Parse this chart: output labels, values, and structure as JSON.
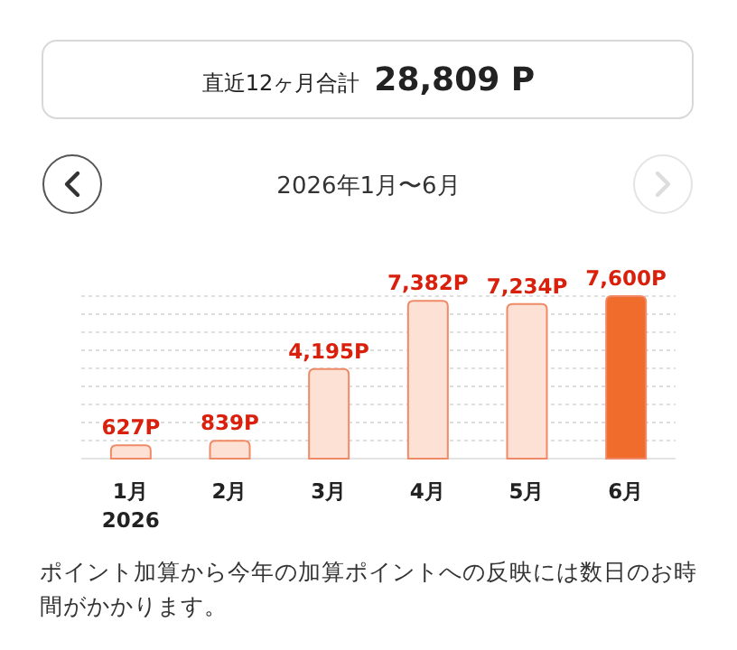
{
  "chart_data": {
    "type": "bar",
    "title": "2026年1月〜6月",
    "categories": [
      "1月\n2026",
      "2月",
      "3月",
      "4月",
      "5月",
      "6月"
    ],
    "values": [
      627,
      839,
      4195,
      7382,
      7234,
      7600
    ],
    "colors": [
      "#fde1d5",
      "#fde1d5",
      "#fde1d5",
      "#fde1d5",
      "#fde1d5",
      "#ef6c2c"
    ],
    "value_labels": [
      "627P",
      "839P",
      "4,195P",
      "7,382P",
      "7,234P",
      "7,600P"
    ],
    "grid": true,
    "annotations": [
      "直近12ヶ月合計",
      "28,809 P",
      "ポイント加算から今年の加算ポイントへの反映には数日のお時間がかかります。"
    ]
  }
}
